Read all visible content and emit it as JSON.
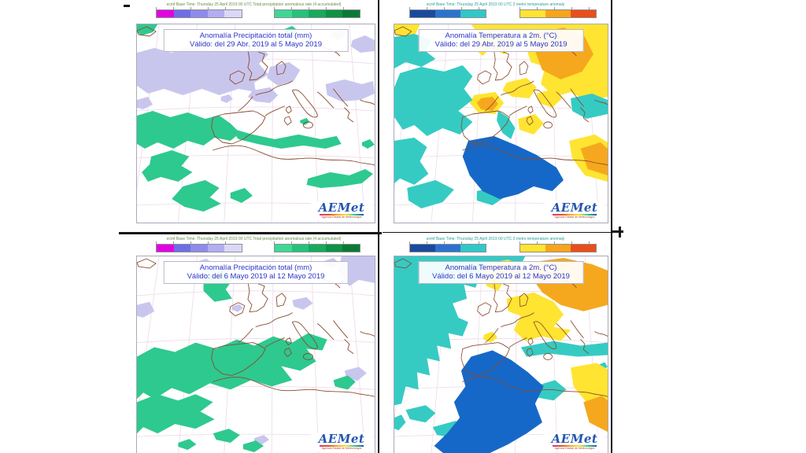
{
  "viewer": {
    "divider_color": "#141414",
    "background": "#ffffff"
  },
  "shared": {
    "logo_text": "AEMet",
    "logo_tagline": "Agencia Estatal de Meteorología"
  },
  "colors": {
    "lavender": "#c9c6ee",
    "green": "#2ec98f",
    "cyan": "#35cbc3",
    "deep_blue": "#1668c8",
    "yellow": "#ffe431",
    "orange": "#f5a81e",
    "red_orange": "#e94e1b",
    "coastline": "#8a4b30",
    "graticule": "#eed8e8",
    "title_text": "#2a35c8"
  },
  "pages": [
    {
      "kind": "precipitation",
      "header_line": "ecmf Base Time: Thursday 25 April 2019 00 UTC Total precipitation anomalous rate (4 accumulated)",
      "title": "Anomalía Precipitación total (mm)",
      "validity": "Válido: del 29 Abr. 2019 al 5 Mayo 2019",
      "colorbar_left": [
        "#e202e2",
        "#6e6ee6",
        "#8f8aec",
        "#b3adf3",
        "#dbd7f9"
      ],
      "colorbar_right": [
        "#3fd795",
        "#25c27b",
        "#17aa5c",
        "#0e9245",
        "#087a35"
      ]
    },
    {
      "kind": "temperature",
      "header_line": "ecmf Base Time: Thursday 25 April 2019 00 UTC 2 metre temperature anomaly",
      "title": "Anomalía Temperatura a 2m. (°C)",
      "validity": "Válido: del 29 Abr. 2019 al 5 Mayo 2019",
      "colorbar_left": [
        "#1a4a9e",
        "#2b72d0",
        "#30c8c8"
      ],
      "colorbar_right": [
        "#ffe431",
        "#f7a51b",
        "#e94e1b"
      ]
    },
    {
      "kind": "precipitation",
      "header_line": "ecmf Base Time: Thursday 25 April 2019 00 UTC Total precipitation anomalous rate (4 accumulated)",
      "title": "Anomalía Precipitación total (mm)",
      "validity": "Válido: del 6 Mayo 2019 al 12 Mayo 2019",
      "colorbar_left": [
        "#e202e2",
        "#6e6ee6",
        "#8f8aec",
        "#b3adf3",
        "#dbd7f9"
      ],
      "colorbar_right": [
        "#3fd795",
        "#25c27b",
        "#17aa5c",
        "#0e9245",
        "#087a35"
      ]
    },
    {
      "kind": "temperature",
      "header_line": "ecmf Base Time: Thursday 25 April 2019 00 UTC 2 metre temperature anomaly",
      "title": "Anomalía Temperatura a 2m. (°C)",
      "validity": "Válido: del 6 Mayo 2019 al 12 Mayo 2019",
      "colorbar_left": [
        "#1a4a9e",
        "#2b72d0",
        "#30c8c8"
      ],
      "colorbar_right": [
        "#ffe431",
        "#f7a51b",
        "#e94e1b"
      ]
    }
  ]
}
